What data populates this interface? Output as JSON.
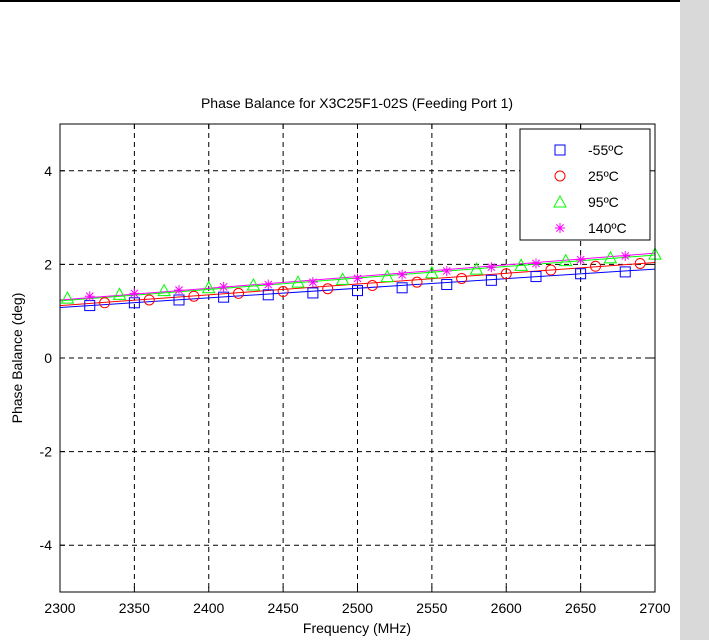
{
  "chart_data": {
    "type": "line",
    "title": "Phase Balance for X3C25F1-02S (Feeding Port 1)",
    "xlabel": "Frequency (MHz)",
    "ylabel": "Phase Balance (deg)",
    "xlim": [
      2300,
      2700
    ],
    "ylim": [
      -5,
      5
    ],
    "x_ticks": [
      2300,
      2350,
      2400,
      2450,
      2500,
      2550,
      2600,
      2650,
      2700
    ],
    "y_ticks": [
      -4,
      -2,
      0,
      2,
      4
    ],
    "x_tick_labels": [
      "2300",
      "2350",
      "2400",
      "2450",
      "2500",
      "2550",
      "2600",
      "2650",
      "2700"
    ],
    "y_tick_labels": [
      "-4",
      "-2",
      "0",
      "2",
      "4"
    ],
    "grid": true,
    "legend_position": "top-right",
    "series": [
      {
        "name": "-55ºC",
        "color": "#0000ff",
        "marker": "square",
        "x": [
          2320,
          2350,
          2380,
          2410,
          2440,
          2470,
          2500,
          2530,
          2560,
          2590,
          2620,
          2650,
          2680
        ],
        "y": [
          1.12,
          1.18,
          1.24,
          1.3,
          1.35,
          1.39,
          1.44,
          1.5,
          1.57,
          1.66,
          1.74,
          1.8,
          1.84
        ],
        "line_x": [
          2300,
          2700
        ],
        "line_y": [
          1.08,
          1.9
        ]
      },
      {
        "name": "25ºC",
        "color": "#ff0000",
        "marker": "circle",
        "x": [
          2330,
          2360,
          2390,
          2420,
          2450,
          2480,
          2510,
          2540,
          2570,
          2600,
          2630,
          2660,
          2690
        ],
        "y": [
          1.18,
          1.24,
          1.32,
          1.38,
          1.42,
          1.48,
          1.55,
          1.62,
          1.7,
          1.8,
          1.88,
          1.96,
          2.02
        ],
        "line_x": [
          2300,
          2700
        ],
        "line_y": [
          1.12,
          2.04
        ]
      },
      {
        "name": "95ºC",
        "color": "#00ff00",
        "marker": "triangle",
        "x": [
          2305,
          2340,
          2370,
          2400,
          2430,
          2460,
          2490,
          2520,
          2550,
          2580,
          2610,
          2640,
          2670,
          2700
        ],
        "y": [
          1.28,
          1.36,
          1.44,
          1.5,
          1.56,
          1.62,
          1.68,
          1.74,
          1.82,
          1.9,
          1.98,
          2.08,
          2.14,
          2.22
        ],
        "line_x": [
          2300,
          2700
        ],
        "line_y": [
          1.22,
          2.2
        ]
      },
      {
        "name": "140ºC",
        "color": "#ff00ff",
        "marker": "star",
        "x": [
          2320,
          2350,
          2380,
          2410,
          2440,
          2470,
          2500,
          2530,
          2560,
          2590,
          2620,
          2650,
          2680
        ],
        "y": [
          1.32,
          1.38,
          1.45,
          1.52,
          1.57,
          1.62,
          1.7,
          1.78,
          1.86,
          1.94,
          2.02,
          2.1,
          2.18
        ],
        "line_x": [
          2300,
          2700
        ],
        "line_y": [
          1.24,
          2.24
        ]
      }
    ]
  }
}
